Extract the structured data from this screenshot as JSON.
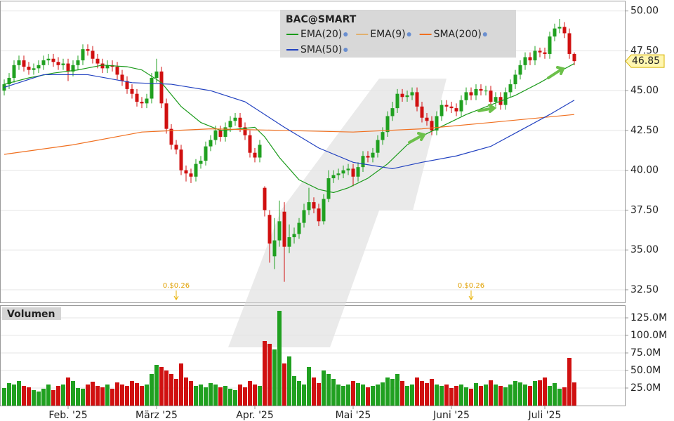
{
  "chart_data": [
    {
      "type": "candlestick",
      "title": "BAC@SMART",
      "categories": [
        null,
        null,
        null,
        null,
        null,
        null,
        null,
        null,
        null,
        null,
        null,
        null,
        null,
        "Feb. '25",
        null,
        null,
        null,
        null,
        null,
        null,
        null,
        null,
        null,
        null,
        null,
        null,
        null,
        null,
        null,
        null,
        null,
        "März '25",
        null,
        null,
        null,
        null,
        null,
        null,
        null,
        null,
        null,
        null,
        null,
        null,
        null,
        null,
        null,
        null,
        null,
        null,
        null,
        "Apr. '25",
        null,
        null,
        null,
        null,
        null,
        null,
        null,
        null,
        null,
        null,
        null,
        null,
        null,
        null,
        null,
        null,
        null,
        null,
        null,
        "Mai '25",
        null,
        null,
        null,
        null,
        null,
        null,
        null,
        null,
        null,
        null,
        null,
        null,
        null,
        null,
        null,
        null,
        null,
        null,
        null,
        "Juni '25",
        null,
        null,
        null,
        null,
        null,
        null,
        null,
        null,
        null,
        null,
        null,
        null,
        null,
        null,
        null,
        null,
        null,
        null,
        "Juli '25",
        null,
        null,
        null,
        null,
        null,
        null
      ],
      "open": [
        45.0,
        45.4,
        45.8,
        46.6,
        46.9,
        46.5,
        46.3,
        46.4,
        46.6,
        46.9,
        47.0,
        46.8,
        46.6,
        46.7,
        46.2,
        46.6,
        46.9,
        47.6,
        47.5,
        47.0,
        46.7,
        46.4,
        46.6,
        46.5,
        46.0,
        45.6,
        45.1,
        44.8,
        44.3,
        44.2,
        44.5,
        45.8,
        46.2,
        44.2,
        42.6,
        41.6,
        41.3,
        40.0,
        39.8,
        39.6,
        40.4,
        40.6,
        41.5,
        41.9,
        42.5,
        42.1,
        42.7,
        43.1,
        43.3,
        42.7,
        42.2,
        41.1,
        40.8,
        38.9,
        37.2,
        34.6,
        35.6,
        37.4,
        35.2,
        35.8,
        36.0,
        36.7,
        37.5,
        38.0,
        37.6,
        36.8,
        38.2,
        39.5,
        39.7,
        39.8,
        40.0,
        40.1,
        39.6,
        40.2,
        40.9,
        40.8,
        41.1,
        41.9,
        42.4,
        43.4,
        43.9,
        44.8,
        44.6,
        44.7,
        44.9,
        44.0,
        43.3,
        43.1,
        42.5,
        43.4,
        44.1,
        44.0,
        43.9,
        43.7,
        44.4,
        44.9,
        44.7,
        45.1,
        45.0,
        45.0,
        44.3,
        44.6,
        44.1,
        44.9,
        45.4,
        46.0,
        46.6,
        47.1,
        46.9,
        47.5,
        47.4,
        47.3,
        48.4,
        48.9,
        49.0,
        48.6,
        47.3
      ],
      "high": [
        45.7,
        46.1,
        46.9,
        47.2,
        47.2,
        46.8,
        46.7,
        46.9,
        47.2,
        47.3,
        47.3,
        47.1,
        47.0,
        47.0,
        46.9,
        47.2,
        47.9,
        47.9,
        47.8,
        47.3,
        47.0,
        46.9,
        46.9,
        46.8,
        46.3,
        45.9,
        45.4,
        45.1,
        44.6,
        44.8,
        46.1,
        47.0,
        46.5,
        44.5,
        42.9,
        41.9,
        41.6,
        40.3,
        40.1,
        40.7,
        40.9,
        41.8,
        42.2,
        42.8,
        42.8,
        43.0,
        43.4,
        43.6,
        43.6,
        43.0,
        42.5,
        41.4,
        41.9,
        39.0,
        37.5,
        37.0,
        38.1,
        38.0,
        36.6,
        36.4,
        37.0,
        37.9,
        38.9,
        38.3,
        37.9,
        38.5,
        40.0,
        40.0,
        40.1,
        40.3,
        40.4,
        40.4,
        40.5,
        41.2,
        41.2,
        41.4,
        42.2,
        42.7,
        43.7,
        44.3,
        45.1,
        45.1,
        45.0,
        45.2,
        45.2,
        44.3,
        43.6,
        43.4,
        43.7,
        44.4,
        44.4,
        44.3,
        44.2,
        44.7,
        45.2,
        45.2,
        45.4,
        45.4,
        45.3,
        45.3,
        44.9,
        44.9,
        45.2,
        45.7,
        46.3,
        46.9,
        47.4,
        47.4,
        47.8,
        47.7,
        47.7,
        48.7,
        49.2,
        49.5,
        49.3,
        48.9,
        47.4
      ],
      "low": [
        44.7,
        45.1,
        45.5,
        46.3,
        46.2,
        46.0,
        46.0,
        46.1,
        46.3,
        46.6,
        46.5,
        46.3,
        46.3,
        45.6,
        45.9,
        46.3,
        46.6,
        47.2,
        46.7,
        46.4,
        46.1,
        46.1,
        46.2,
        45.7,
        45.3,
        44.8,
        44.5,
        44.0,
        43.9,
        43.9,
        44.2,
        45.5,
        43.9,
        42.3,
        41.3,
        41.0,
        39.7,
        39.3,
        39.2,
        39.3,
        40.1,
        40.3,
        41.2,
        41.6,
        41.8,
        41.8,
        42.4,
        42.8,
        42.4,
        41.9,
        40.8,
        40.5,
        40.5,
        37.1,
        34.2,
        33.8,
        35.2,
        33.0,
        34.8,
        35.4,
        35.7,
        36.4,
        37.2,
        37.3,
        36.5,
        36.6,
        38.0,
        39.2,
        39.4,
        39.5,
        39.7,
        39.0,
        39.3,
        39.9,
        40.5,
        40.5,
        40.8,
        41.6,
        42.1,
        43.1,
        43.6,
        44.3,
        44.3,
        44.4,
        43.7,
        43.0,
        42.8,
        42.2,
        42.2,
        43.1,
        43.7,
        43.6,
        43.4,
        43.4,
        44.1,
        44.4,
        44.4,
        44.7,
        44.7,
        44.0,
        44.0,
        43.8,
        43.8,
        44.6,
        45.1,
        45.7,
        46.3,
        46.6,
        46.6,
        47.1,
        47.0,
        47.0,
        48.1,
        48.6,
        48.3,
        47.0,
        46.6
      ],
      "close": [
        45.4,
        45.8,
        46.6,
        46.9,
        46.5,
        46.3,
        46.4,
        46.6,
        46.9,
        47.0,
        46.8,
        46.6,
        46.7,
        46.2,
        46.6,
        46.9,
        47.6,
        47.5,
        47.0,
        46.7,
        46.4,
        46.6,
        46.5,
        46.0,
        45.6,
        45.1,
        44.8,
        44.3,
        44.2,
        44.5,
        45.8,
        46.2,
        44.2,
        42.6,
        41.6,
        41.3,
        40.0,
        39.8,
        39.6,
        40.4,
        40.6,
        41.5,
        41.9,
        42.5,
        42.1,
        42.7,
        43.1,
        43.3,
        42.7,
        42.2,
        41.1,
        40.8,
        41.6,
        37.5,
        35.4,
        35.6,
        36.8,
        35.2,
        35.8,
        36.0,
        36.7,
        37.5,
        38.0,
        37.6,
        36.8,
        38.2,
        39.5,
        39.7,
        39.8,
        40.0,
        40.1,
        39.6,
        40.2,
        40.9,
        40.8,
        41.1,
        41.9,
        42.4,
        43.4,
        43.9,
        44.8,
        44.6,
        44.7,
        44.9,
        44.0,
        43.3,
        43.1,
        42.5,
        43.4,
        44.1,
        44.0,
        43.9,
        43.7,
        44.4,
        44.9,
        44.7,
        45.1,
        45.0,
        45.0,
        44.3,
        44.6,
        44.1,
        44.9,
        45.4,
        46.0,
        46.6,
        47.1,
        46.9,
        47.5,
        47.4,
        47.3,
        48.4,
        48.9,
        49.0,
        48.6,
        47.3,
        46.85
      ],
      "up_color": "#20a020",
      "down_color": "#d01010",
      "indicators": [
        {
          "name": "EMA(20)",
          "color": "#1a9a1a",
          "x": [
            0,
            5,
            10,
            15,
            20,
            25,
            28,
            32,
            36,
            40,
            44,
            48,
            51,
            53,
            56,
            60,
            64,
            67,
            70,
            74,
            78,
            82,
            86,
            90,
            94,
            99,
            104,
            109,
            113,
            116
          ],
          "values": [
            45.4,
            45.8,
            46.1,
            46.3,
            46.6,
            46.5,
            46.3,
            45.5,
            44.0,
            43.0,
            42.5,
            42.6,
            42.7,
            42.1,
            40.8,
            39.4,
            38.8,
            38.6,
            38.9,
            39.5,
            40.4,
            41.6,
            42.3,
            42.9,
            43.5,
            44.1,
            44.7,
            45.5,
            46.2,
            46.7
          ]
        },
        {
          "name": "EMA(9)",
          "color": "#e0b070"
        },
        {
          "name": "SMA(200)",
          "color": "#f07020",
          "x": [
            0,
            14,
            28,
            42,
            57,
            71,
            85,
            99,
            116
          ],
          "values": [
            41.0,
            41.6,
            42.4,
            42.6,
            42.5,
            42.4,
            42.6,
            43.0,
            43.5
          ]
        },
        {
          "name": "SMA(50)",
          "color": "#2040c0",
          "x": [
            0,
            8,
            17,
            26,
            34,
            42,
            49,
            57,
            64,
            71,
            79,
            85,
            92,
            99,
            105,
            111,
            116
          ],
          "values": [
            45.2,
            46.0,
            46.0,
            45.5,
            45.4,
            45.0,
            44.3,
            42.7,
            41.4,
            40.5,
            40.1,
            40.5,
            40.9,
            41.5,
            42.5,
            43.5,
            44.4
          ]
        }
      ],
      "annotations": [
        {
          "text": "0.$0.26",
          "index": 35
        },
        {
          "text": "0.$0.26",
          "index": 95
        }
      ],
      "ylim": [
        31.75,
        50.6
      ],
      "yticks": [
        {
          "value": 50,
          "label": "50.00"
        },
        {
          "value": 47.5,
          "label": "47.50"
        },
        {
          "value": 45,
          "label": "45.00"
        },
        {
          "value": 42.5,
          "label": "42.50"
        },
        {
          "value": 40,
          "label": "40.00"
        },
        {
          "value": 37.5,
          "label": "37.50"
        },
        {
          "value": 35,
          "label": "35.00"
        },
        {
          "value": 32.5,
          "label": "32.50"
        }
      ],
      "grid": true
    },
    {
      "type": "bar",
      "title": "Volumen",
      "values": [
        25,
        32,
        30,
        35,
        28,
        26,
        22,
        20,
        24,
        30,
        22,
        28,
        30,
        40,
        35,
        25,
        24,
        30,
        34,
        28,
        26,
        30,
        24,
        33,
        30,
        28,
        35,
        32,
        28,
        30,
        45,
        58,
        55,
        50,
        45,
        38,
        60,
        40,
        35,
        28,
        30,
        26,
        32,
        30,
        26,
        28,
        24,
        22,
        30,
        26,
        35,
        30,
        28,
        92,
        88,
        80,
        135,
        60,
        70,
        42,
        35,
        30,
        55,
        40,
        32,
        50,
        45,
        38,
        30,
        28,
        30,
        35,
        32,
        30,
        26,
        28,
        30,
        33,
        40,
        38,
        45,
        35,
        28,
        30,
        40,
        35,
        32,
        38,
        30,
        28,
        30,
        25,
        28,
        30,
        26,
        24,
        32,
        28,
        30,
        36,
        30,
        28,
        26,
        30,
        35,
        33,
        30,
        28,
        35,
        36,
        40,
        28,
        32,
        24,
        26,
        68,
        33
      ],
      "ylim": [
        0,
        142
      ],
      "yticks": [
        {
          "value": 125,
          "label": "125.0M"
        },
        {
          "value": 100,
          "label": "100.0M"
        },
        {
          "value": 75,
          "label": "75.0M"
        },
        {
          "value": 50,
          "label": "50.0M"
        },
        {
          "value": 25,
          "label": "25.0M"
        }
      ],
      "grid": true
    }
  ]
}
